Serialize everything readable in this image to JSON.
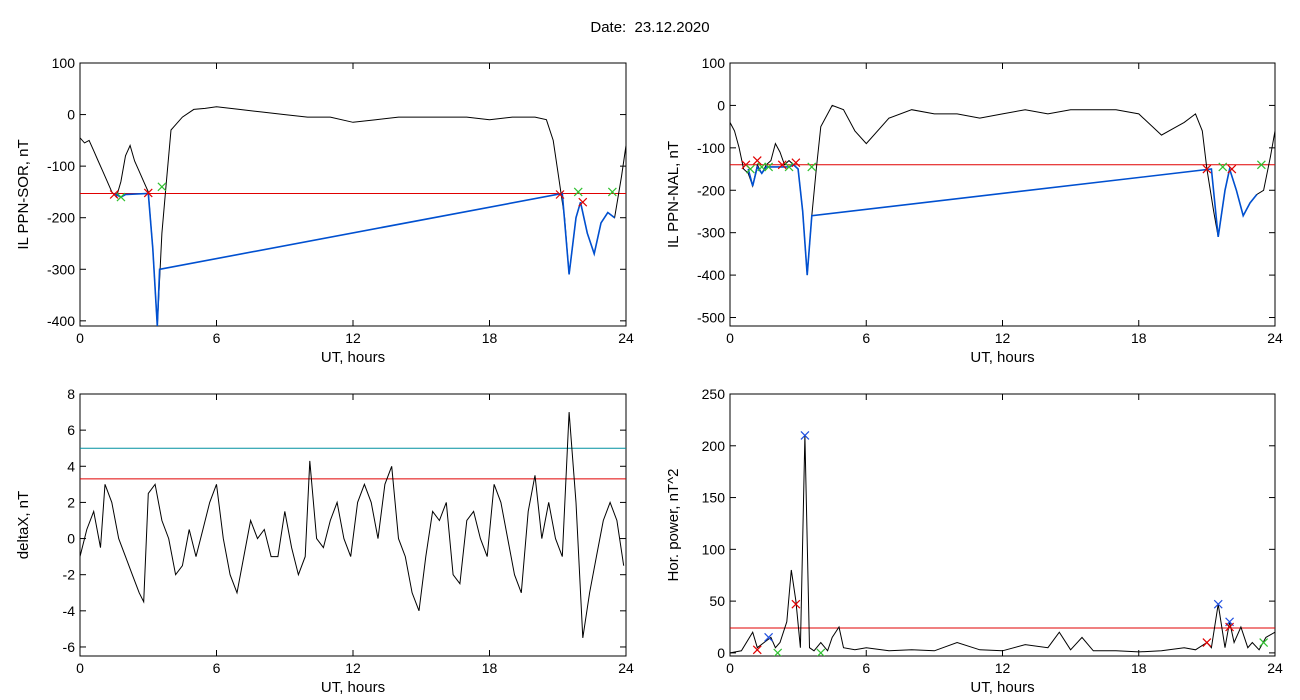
{
  "title": "Date:  23.12.2020",
  "chart_data": [
    {
      "type": "line",
      "ylabel": "IL PPN-SOR, nT",
      "xlabel": "UT, hours",
      "xlim": [
        0,
        24
      ],
      "ylim": [
        -410,
        100
      ],
      "xticks": [
        0,
        6,
        12,
        18,
        24
      ],
      "yticks": [
        100,
        0,
        -100,
        -200,
        -300,
        -400
      ],
      "threshold": {
        "value": -153,
        "color": "#e00000"
      },
      "series": [
        {
          "color": "#000000",
          "x": [
            0,
            0.2,
            0.4,
            0.6,
            0.8,
            1.0,
            1.2,
            1.4,
            1.6,
            1.8,
            2.0,
            2.2,
            2.4,
            2.6,
            2.8,
            3.0,
            3.2,
            3.4,
            3.6,
            3.8,
            4.0,
            4.5,
            5.0,
            5.5,
            6.0,
            7,
            8,
            9,
            10,
            11,
            12,
            13,
            14,
            15,
            16,
            17,
            18,
            19,
            20,
            20.5,
            20.8,
            21.0,
            21.3,
            21.5,
            21.8,
            22.0,
            22.3,
            22.6,
            22.9,
            23.2,
            23.5,
            23.8,
            24.0
          ],
          "y": [
            -45,
            -55,
            -50,
            -70,
            -90,
            -110,
            -130,
            -150,
            -160,
            -130,
            -80,
            -60,
            -90,
            -110,
            -130,
            -150,
            -260,
            -410,
            -230,
            -130,
            -30,
            -5,
            10,
            12,
            15,
            10,
            5,
            0,
            -5,
            -5,
            -15,
            -10,
            -5,
            -5,
            -5,
            -5,
            -10,
            -5,
            -5,
            -10,
            -50,
            -110,
            -200,
            -310,
            -200,
            -170,
            -230,
            -270,
            -210,
            -190,
            -200,
            -120,
            -60
          ]
        },
        {
          "color": "#0050d0",
          "x": [
            1.5,
            1.8,
            2.0,
            3.0,
            3.2,
            3.4,
            3.5,
            21.2,
            21.5,
            21.8,
            22.0,
            22.3,
            22.6,
            22.9,
            23.2,
            23.5
          ],
          "y": [
            -153,
            -160,
            -155,
            -153,
            -260,
            -410,
            -300,
            -153,
            -310,
            -200,
            -170,
            -230,
            -270,
            -210,
            -190,
            -200
          ]
        }
      ],
      "markers": [
        {
          "x": 1.5,
          "y": -155,
          "color": "#e00000"
        },
        {
          "x": 1.8,
          "y": -160,
          "color": "#30c030"
        },
        {
          "x": 3.0,
          "y": -152,
          "color": "#e00000"
        },
        {
          "x": 3.6,
          "y": -140,
          "color": "#30c030"
        },
        {
          "x": 21.1,
          "y": -155,
          "color": "#e00000"
        },
        {
          "x": 21.9,
          "y": -150,
          "color": "#30c030"
        },
        {
          "x": 22.1,
          "y": -170,
          "color": "#e00000"
        },
        {
          "x": 23.4,
          "y": -150,
          "color": "#30c030"
        }
      ]
    },
    {
      "type": "line",
      "ylabel": "IL PPN-NAL, nT",
      "xlabel": "UT, hours",
      "xlim": [
        0,
        24
      ],
      "ylim": [
        -520,
        100
      ],
      "xticks": [
        0,
        6,
        12,
        18,
        24
      ],
      "yticks": [
        100,
        0,
        -100,
        -200,
        -300,
        -400,
        -500
      ],
      "threshold": {
        "value": -140,
        "color": "#e00000"
      },
      "series": [
        {
          "color": "#000000",
          "x": [
            0,
            0.2,
            0.4,
            0.6,
            0.8,
            1.0,
            1.2,
            1.4,
            1.6,
            1.8,
            2.0,
            2.2,
            2.4,
            2.6,
            2.8,
            3.0,
            3.2,
            3.4,
            3.6,
            3.8,
            4.0,
            4.5,
            5.0,
            5.5,
            6.0,
            7,
            8,
            9,
            10,
            11,
            12,
            13,
            14,
            15,
            16,
            17,
            18,
            19,
            20,
            20.5,
            20.8,
            21.0,
            21.3,
            21.5,
            21.8,
            22.0,
            22.3,
            22.6,
            22.9,
            23.2,
            23.5,
            23.8,
            24.0
          ],
          "y": [
            -40,
            -60,
            -100,
            -150,
            -160,
            -190,
            -140,
            -160,
            -140,
            -130,
            -90,
            -110,
            -140,
            -130,
            -140,
            -150,
            -250,
            -400,
            -260,
            -150,
            -50,
            0,
            -10,
            -60,
            -90,
            -30,
            -10,
            -20,
            -20,
            -30,
            -20,
            -10,
            -20,
            -10,
            -10,
            -10,
            -20,
            -70,
            -40,
            -20,
            -60,
            -150,
            -250,
            -310,
            -200,
            -150,
            -200,
            -260,
            -230,
            -210,
            -200,
            -120,
            -60
          ]
        },
        {
          "color": "#0050d0",
          "x": [
            0.8,
            1.0,
            1.2,
            1.4,
            1.6,
            1.8,
            2.6,
            2.8,
            3.0,
            3.2,
            3.4,
            3.6,
            21.2,
            21.5,
            21.8,
            22.0,
            22.3,
            22.6,
            22.9,
            23.2
          ],
          "y": [
            -150,
            -190,
            -145,
            -160,
            -145,
            -145,
            -145,
            -140,
            -150,
            -250,
            -400,
            -260,
            -150,
            -310,
            -200,
            -150,
            -200,
            -260,
            -230,
            -210
          ]
        }
      ],
      "markers": [
        {
          "x": 0.7,
          "y": -140,
          "color": "#e00000"
        },
        {
          "x": 0.9,
          "y": -150,
          "color": "#30c030"
        },
        {
          "x": 1.2,
          "y": -130,
          "color": "#e00000"
        },
        {
          "x": 1.4,
          "y": -145,
          "color": "#30c030"
        },
        {
          "x": 1.7,
          "y": -145,
          "color": "#30c030"
        },
        {
          "x": 2.3,
          "y": -140,
          "color": "#e00000"
        },
        {
          "x": 2.6,
          "y": -145,
          "color": "#30c030"
        },
        {
          "x": 2.9,
          "y": -135,
          "color": "#e00000"
        },
        {
          "x": 3.6,
          "y": -145,
          "color": "#30c030"
        },
        {
          "x": 21.0,
          "y": -150,
          "color": "#e00000"
        },
        {
          "x": 21.7,
          "y": -145,
          "color": "#30c030"
        },
        {
          "x": 22.1,
          "y": -150,
          "color": "#e00000"
        },
        {
          "x": 23.4,
          "y": -140,
          "color": "#30c030"
        }
      ]
    },
    {
      "type": "line",
      "ylabel": "deltaX, nT",
      "xlabel": "UT, hours",
      "xlim": [
        0,
        24
      ],
      "ylim": [
        -6.5,
        8
      ],
      "xticks": [
        0,
        6,
        12,
        18,
        24
      ],
      "yticks": [
        8,
        6,
        4,
        2,
        0,
        -2,
        -4,
        -6
      ],
      "hlines": [
        {
          "value": 5.0,
          "color": "#0090a0"
        },
        {
          "value": 3.3,
          "color": "#e00000"
        }
      ],
      "series": [
        {
          "color": "#000000",
          "x": [
            0,
            0.3,
            0.6,
            0.9,
            1.1,
            1.4,
            1.7,
            2.0,
            2.3,
            2.6,
            2.8,
            3.0,
            3.3,
            3.6,
            3.9,
            4.2,
            4.5,
            4.8,
            5.1,
            5.4,
            5.7,
            6.0,
            6.3,
            6.6,
            6.9,
            7.2,
            7.5,
            7.8,
            8.1,
            8.4,
            8.7,
            9.0,
            9.3,
            9.6,
            9.9,
            10.1,
            10.4,
            10.7,
            11.0,
            11.3,
            11.6,
            11.9,
            12.2,
            12.5,
            12.8,
            13.1,
            13.4,
            13.7,
            14.0,
            14.3,
            14.6,
            14.9,
            15.2,
            15.5,
            15.8,
            16.1,
            16.4,
            16.7,
            17.0,
            17.3,
            17.6,
            17.9,
            18.2,
            18.5,
            18.8,
            19.1,
            19.4,
            19.7,
            20.0,
            20.3,
            20.6,
            20.9,
            21.2,
            21.5,
            21.8,
            22.1,
            22.4,
            22.7,
            23.0,
            23.3,
            23.6,
            23.9
          ],
          "y": [
            -1,
            0.5,
            1.5,
            -0.5,
            3,
            2,
            0,
            -1,
            -2,
            -3,
            -3.5,
            2.5,
            3,
            1,
            0,
            -2,
            -1.5,
            0.5,
            -1,
            0.5,
            2,
            3,
            0,
            -2,
            -3,
            -1,
            1,
            0,
            0.5,
            -1,
            -1,
            1.5,
            -0.5,
            -2,
            -1,
            4.3,
            0,
            -0.5,
            1,
            2,
            0,
            -1,
            2,
            3,
            2,
            0,
            3,
            4,
            0,
            -1,
            -3,
            -4,
            -1,
            1.5,
            1,
            2,
            -2,
            -2.5,
            1,
            1.5,
            0,
            -1,
            3,
            2,
            0,
            -2,
            -3,
            1.5,
            3.5,
            0,
            2,
            0,
            -1,
            7,
            2,
            -5.5,
            -3,
            -1,
            1,
            2,
            1,
            -1.5
          ]
        }
      ],
      "markers": []
    },
    {
      "type": "line",
      "ylabel": "Hor. power, nT^2",
      "xlabel": "UT, hours",
      "xlim": [
        0,
        24
      ],
      "ylim": [
        -3,
        250
      ],
      "xticks": [
        0,
        6,
        12,
        18,
        24
      ],
      "yticks": [
        250,
        200,
        150,
        100,
        50,
        0
      ],
      "threshold": {
        "value": 24,
        "color": "#e00000"
      },
      "series": [
        {
          "color": "#000000",
          "x": [
            0,
            0.5,
            1.0,
            1.2,
            1.5,
            1.8,
            2.0,
            2.2,
            2.5,
            2.7,
            2.9,
            3.1,
            3.3,
            3.5,
            3.7,
            4.0,
            4.3,
            4.5,
            4.8,
            5.0,
            5.5,
            6.0,
            7,
            8,
            9,
            10,
            11,
            12,
            13,
            14,
            14.5,
            15,
            15.5,
            16,
            17,
            18,
            19,
            20,
            20.5,
            21.0,
            21.2,
            21.5,
            21.8,
            22.0,
            22.2,
            22.5,
            22.8,
            23.0,
            23.3,
            23.6,
            24.0
          ],
          "y": [
            0,
            2,
            20,
            5,
            10,
            15,
            5,
            10,
            30,
            80,
            50,
            5,
            210,
            5,
            2,
            10,
            2,
            15,
            25,
            5,
            3,
            5,
            2,
            3,
            2,
            10,
            3,
            2,
            8,
            5,
            20,
            3,
            15,
            2,
            2,
            1,
            2,
            5,
            3,
            10,
            5,
            47,
            5,
            30,
            10,
            25,
            5,
            10,
            3,
            15,
            20
          ]
        }
      ],
      "markers": [
        {
          "x": 3.3,
          "y": 210,
          "color": "#2050e0"
        },
        {
          "x": 2.9,
          "y": 47,
          "color": "#e00000"
        },
        {
          "x": 1.2,
          "y": 3,
          "color": "#e00000"
        },
        {
          "x": 1.7,
          "y": 15,
          "color": "#2050e0"
        },
        {
          "x": 2.1,
          "y": 0,
          "color": "#30c030"
        },
        {
          "x": 4.0,
          "y": 0,
          "color": "#30c030"
        },
        {
          "x": 21.0,
          "y": 10,
          "color": "#e00000"
        },
        {
          "x": 21.5,
          "y": 47,
          "color": "#2050e0"
        },
        {
          "x": 22.0,
          "y": 30,
          "color": "#2050e0"
        },
        {
          "x": 22.0,
          "y": 25,
          "color": "#e00000"
        },
        {
          "x": 23.5,
          "y": 10,
          "color": "#30c030"
        }
      ]
    }
  ]
}
